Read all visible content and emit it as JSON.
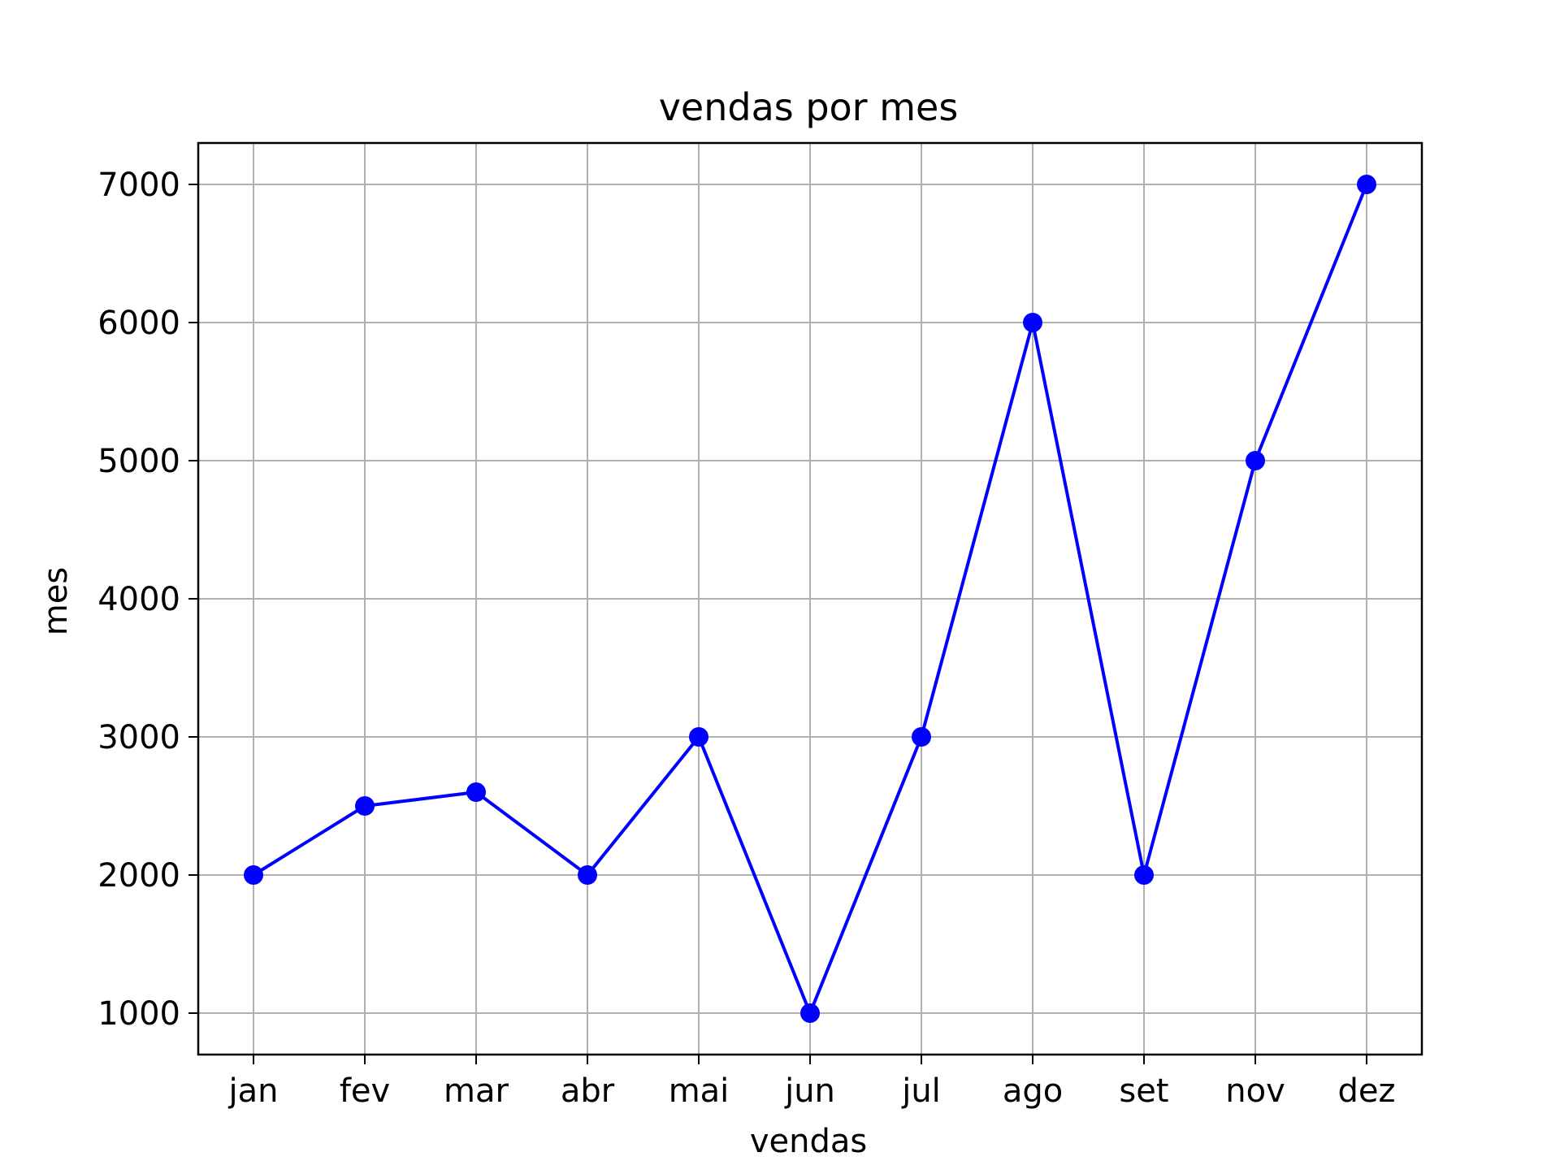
{
  "chart_data": {
    "type": "line",
    "title": "vendas por mes",
    "xlabel": "vendas",
    "ylabel": "mes",
    "categories": [
      "jan",
      "fev",
      "mar",
      "abr",
      "mai",
      "jun",
      "jul",
      "ago",
      "set",
      "nov",
      "dez"
    ],
    "series": [
      {
        "values": [
          2000,
          2500,
          2600,
          2000,
          3000,
          1000,
          3000,
          6000,
          2000,
          5000,
          7000
        ],
        "color": "#0000ff",
        "marker": "circle"
      }
    ],
    "yticks": [
      1000,
      2000,
      3000,
      4000,
      5000,
      6000,
      7000
    ],
    "ylim": [
      700,
      7300
    ],
    "grid": true,
    "grid_color": "#b0b0b0"
  }
}
